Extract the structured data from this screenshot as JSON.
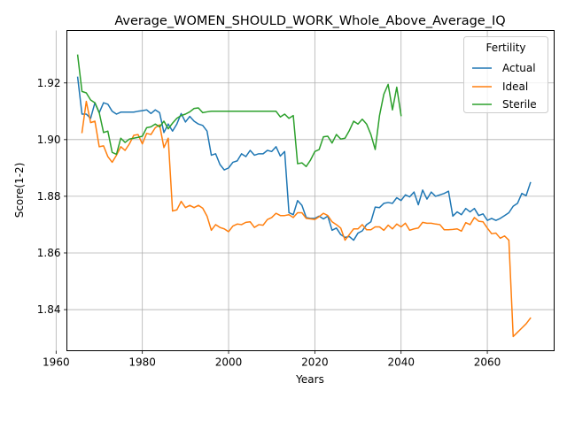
{
  "chart_data": {
    "type": "line",
    "title": "Average_WOMEN_SHOULD_WORK_Whole_Above_Average_IQ",
    "xlabel": "Years",
    "ylabel": "Score(1-2)",
    "xlim": [
      1962.5,
      2075.5
    ],
    "ylim": [
      1.8255,
      1.9385
    ],
    "x_ticks": [
      1960,
      1980,
      2000,
      2020,
      2040,
      2060
    ],
    "x_tick_labels": [
      "1960",
      "1980",
      "2000",
      "2020",
      "2040",
      "2060"
    ],
    "y_ticks": [
      1.84,
      1.86,
      1.88,
      1.9,
      1.92
    ],
    "y_tick_labels": [
      "1.84",
      "1.86",
      "1.88",
      "1.90",
      "1.92"
    ],
    "grid": true,
    "legend": {
      "title": "Fertility",
      "placement": "upper right"
    },
    "series": [
      {
        "name": "Actual",
        "color": "#1f77b4",
        "x": [
          1965,
          1966,
          1967,
          1968,
          1969,
          1970,
          1971,
          1972,
          1973,
          1974,
          1975,
          1976,
          1977,
          1978,
          1979,
          1980,
          1981,
          1982,
          1983,
          1984,
          1985,
          1986,
          1987,
          1988,
          1989,
          1990,
          1991,
          1992,
          1993,
          1994,
          1995,
          1996,
          1997,
          1998,
          1999,
          2000,
          2001,
          2002,
          2003,
          2004,
          2005,
          2006,
          2007,
          2008,
          2009,
          2010,
          2011,
          2012,
          2013,
          2014,
          2015,
          2016,
          2017,
          2018,
          2019,
          2020,
          2021,
          2022,
          2023,
          2024,
          2025,
          2026,
          2027,
          2028,
          2029,
          2030,
          2031,
          2032,
          2033,
          2034,
          2035,
          2036,
          2037,
          2038,
          2039,
          2040,
          2041,
          2042,
          2043,
          2044,
          2045,
          2046,
          2047,
          2048,
          2049,
          2050,
          2051,
          2052,
          2053,
          2054,
          2055,
          2056,
          2057,
          2058,
          2059,
          2060,
          2061,
          2062,
          2063,
          2064,
          2065,
          2066,
          2067,
          2068,
          2069,
          2070
        ],
        "values": [
          1.922,
          1.909,
          1.909,
          1.9075,
          1.913,
          1.9095,
          1.913,
          1.9125,
          1.91,
          1.909,
          1.9097,
          1.9097,
          1.9097,
          1.9097,
          1.91,
          1.9102,
          1.9105,
          1.9092,
          1.9105,
          1.9095,
          1.9025,
          1.9055,
          1.903,
          1.9055,
          1.9092,
          1.9062,
          1.9082,
          1.9065,
          1.9055,
          1.905,
          1.903,
          1.8945,
          1.895,
          1.8912,
          1.8893,
          1.89,
          1.892,
          1.8925,
          1.895,
          1.894,
          1.8962,
          1.8945,
          1.895,
          1.895,
          1.8962,
          1.8958,
          1.8975,
          1.8942,
          1.8958,
          1.8742,
          1.8735,
          1.8785,
          1.8768,
          1.8725,
          1.8722,
          1.8722,
          1.873,
          1.872,
          1.873,
          1.868,
          1.8688,
          1.8665,
          1.8655,
          1.8658,
          1.8645,
          1.867,
          1.8678,
          1.87,
          1.871,
          1.8762,
          1.876,
          1.8775,
          1.8778,
          1.8775,
          1.8795,
          1.8785,
          1.8805,
          1.8798,
          1.8815,
          1.877,
          1.8822,
          1.879,
          1.8815,
          1.88,
          1.8805,
          1.881,
          1.8818,
          1.873,
          1.8745,
          1.8735,
          1.8757,
          1.8745,
          1.8757,
          1.8732,
          1.8738,
          1.8715,
          1.8722,
          1.8715,
          1.8722,
          1.8732,
          1.8742,
          1.8765,
          1.8775,
          1.881,
          1.8802,
          1.8848
        ]
      },
      {
        "name": "Ideal",
        "color": "#ff7f0e",
        "x": [
          1965,
          1966,
          1967,
          1968,
          1969,
          1970,
          1971,
          1972,
          1973,
          1974,
          1975,
          1976,
          1977,
          1978,
          1979,
          1980,
          1981,
          1982,
          1983,
          1984,
          1985,
          1986,
          1987,
          1988,
          1989,
          1990,
          1991,
          1992,
          1993,
          1994,
          1995,
          1996,
          1997,
          1998,
          1999,
          2000,
          2001,
          2002,
          2003,
          2004,
          2005,
          2006,
          2007,
          2008,
          2009,
          2010,
          2011,
          2012,
          2013,
          2014,
          2015,
          2016,
          2017,
          2018,
          2019,
          2020,
          2021,
          2022,
          2023,
          2024,
          2025,
          2026,
          2027,
          2028,
          2029,
          2030,
          2031,
          2032,
          2033,
          2034,
          2035,
          2036,
          2037,
          2038,
          2039,
          2040,
          2041,
          2042,
          2043,
          2044,
          2045,
          2046,
          2047,
          2048,
          2049,
          2050,
          2051,
          2052,
          2053,
          2054,
          2055,
          2056,
          2057,
          2058,
          2059,
          2060,
          2061,
          2062,
          2063,
          2064,
          2065,
          2066,
          2067,
          2068,
          2069,
          2070
        ],
        "values": [
          null,
          1.9025,
          1.9135,
          1.906,
          1.9065,
          1.8975,
          1.8978,
          1.894,
          1.892,
          1.8945,
          1.8975,
          1.8962,
          1.8985,
          1.9015,
          1.9018,
          1.8985,
          1.9022,
          1.9018,
          1.9042,
          1.9052,
          1.8972,
          1.9005,
          1.8748,
          1.8752,
          1.8782,
          1.876,
          1.8768,
          1.876,
          1.8768,
          1.8758,
          1.873,
          1.868,
          1.87,
          1.869,
          1.8685,
          1.8675,
          1.8695,
          1.8702,
          1.87,
          1.8708,
          1.871,
          1.869,
          1.87,
          1.8698,
          1.8718,
          1.8725,
          1.874,
          1.8732,
          1.8732,
          1.8735,
          1.8725,
          1.8742,
          1.8742,
          1.8722,
          1.872,
          1.8718,
          1.8728,
          1.874,
          1.8732,
          1.871,
          1.87,
          1.8688,
          1.8645,
          1.8665,
          1.8685,
          1.8685,
          1.87,
          1.8682,
          1.8682,
          1.8692,
          1.8692,
          1.868,
          1.8698,
          1.8685,
          1.8702,
          1.8692,
          1.8705,
          1.868,
          1.8685,
          1.8688,
          1.8708,
          1.8705,
          1.8705,
          1.8702,
          1.87,
          1.8682,
          1.8682,
          1.8683,
          1.8685,
          1.8677,
          1.8707,
          1.87,
          1.8725,
          1.8712,
          1.871,
          1.8688,
          1.8668,
          1.867,
          1.8652,
          1.866,
          1.8645,
          1.8305,
          1.832,
          1.8335,
          1.835,
          1.837
        ]
      },
      {
        "name": "Sterile",
        "color": "#2ca02c",
        "x": [
          1965,
          1966,
          1967,
          1968,
          1969,
          1970,
          1971,
          1972,
          1973,
          1974,
          1975,
          1976,
          1977,
          1978,
          1979,
          1980,
          1981,
          1982,
          1983,
          1984,
          1985,
          1986,
          1987,
          1988,
          1989,
          1990,
          1991,
          1992,
          1993,
          1994,
          1995,
          1996,
          1997,
          1998,
          1999,
          2000,
          2001,
          2002,
          2003,
          2004,
          2005,
          2006,
          2007,
          2008,
          2009,
          2010,
          2011,
          2012,
          2013,
          2014,
          2015,
          2016,
          2017,
          2018,
          2019,
          2020,
          2021,
          2022,
          2023,
          2024,
          2025,
          2026,
          2027,
          2028,
          2029,
          2030,
          2031,
          2032,
          2033,
          2034,
          2035,
          2036,
          2037,
          2038,
          2039,
          2040
        ],
        "values": [
          1.9298,
          1.917,
          1.9165,
          1.914,
          1.913,
          1.9095,
          1.9025,
          1.903,
          1.8955,
          1.8948,
          1.9005,
          1.899,
          1.9002,
          1.9005,
          1.9008,
          1.9012,
          1.9042,
          1.9045,
          1.9055,
          1.9045,
          1.9065,
          1.9038,
          1.9058,
          1.9075,
          1.9085,
          1.909,
          1.9098,
          1.911,
          1.9112,
          1.9095,
          1.9098,
          1.91,
          1.91,
          1.91,
          1.91,
          1.91,
          1.91,
          1.91,
          1.91,
          1.91,
          1.91,
          1.91,
          1.91,
          1.91,
          1.91,
          1.91,
          1.91,
          1.908,
          1.909,
          1.9075,
          1.9085,
          1.8915,
          1.8918,
          1.8905,
          1.8928,
          1.8958,
          1.8965,
          1.901,
          1.9012,
          1.8988,
          1.9018,
          1.9002,
          1.9005,
          1.9032,
          1.9065,
          1.9055,
          1.9072,
          1.9055,
          1.9018,
          1.8965,
          1.9085,
          1.916,
          1.9195,
          1.9105,
          1.9185,
          1.9085
        ]
      }
    ]
  }
}
